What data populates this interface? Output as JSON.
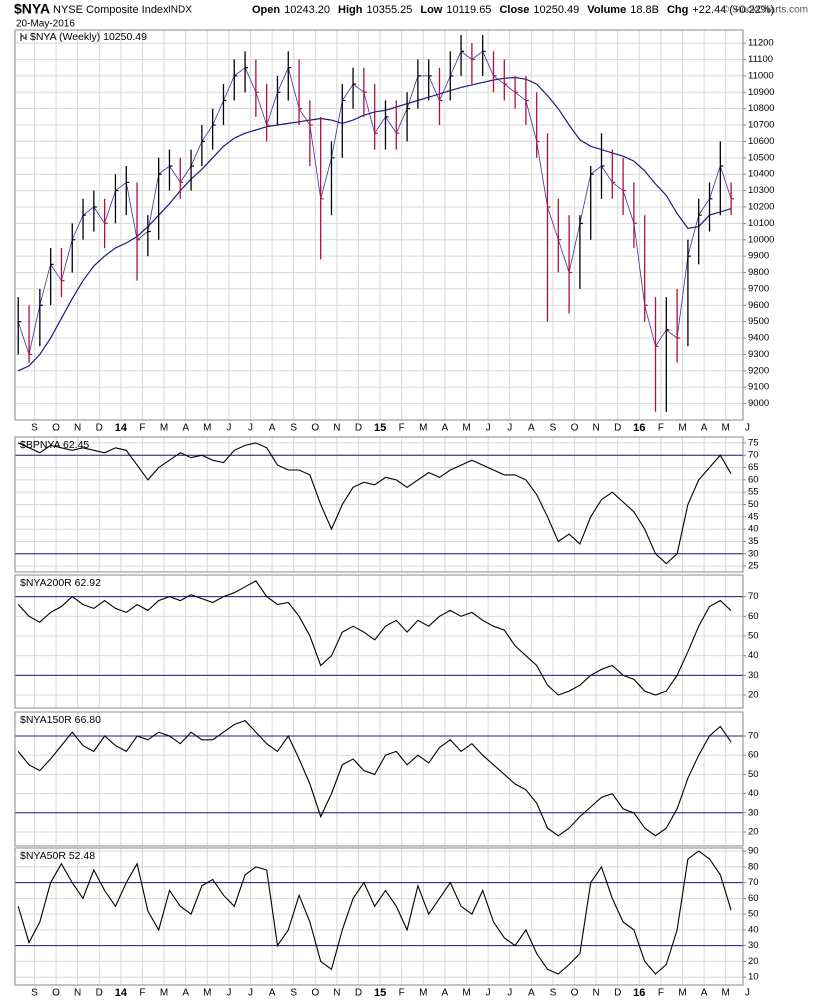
{
  "header": {
    "symbol": "$NYA",
    "name": "NYSE Composite Index",
    "exchange": "INDX",
    "date": "20-May-2016",
    "quote": [
      {
        "label": "Open",
        "value": "10243.20"
      },
      {
        "label": "High",
        "value": "10355.25"
      },
      {
        "label": "Low",
        "value": "10119.65"
      },
      {
        "label": "Close",
        "value": "10250.49"
      },
      {
        "label": "Volume",
        "value": "18.8B"
      },
      {
        "label": "Chg",
        "value": "+22.44 (+0.22%)"
      }
    ],
    "credit": "© StockCharts.com"
  },
  "chart_data": {
    "type": "stock",
    "x": [
      -0.75,
      -0.25,
      0.25,
      0.75,
      1.25,
      1.75,
      2.25,
      2.75,
      3.25,
      3.75,
      4.25,
      4.75,
      5.25,
      5.75,
      6.25,
      6.75,
      7.25,
      7.75,
      8.25,
      8.75,
      9.25,
      9.75,
      10.25,
      10.75,
      11.25,
      11.75,
      12.25,
      12.75,
      13.25,
      13.75,
      14.25,
      14.75,
      15.25,
      15.75,
      16.25,
      16.75,
      17.25,
      17.75,
      18.25,
      18.75,
      19.25,
      19.75,
      20.25,
      20.75,
      21.25,
      21.75,
      22.25,
      22.75,
      23.25,
      23.75,
      24.25,
      24.75,
      25.25,
      25.75,
      26.25,
      26.75,
      27.25,
      27.75,
      28.25,
      28.75,
      29.25,
      29.75,
      30.25,
      30.75,
      31.25,
      31.75,
      32.25
    ],
    "xlim": [
      -0.9,
      32.8
    ],
    "xticks": [
      {
        "value": 0,
        "label": "S"
      },
      {
        "value": 1,
        "label": "O"
      },
      {
        "value": 2,
        "label": "N"
      },
      {
        "value": 3,
        "label": "D"
      },
      {
        "value": 4,
        "label": "14"
      },
      {
        "value": 5,
        "label": "F"
      },
      {
        "value": 6,
        "label": "M"
      },
      {
        "value": 7,
        "label": "A"
      },
      {
        "value": 8,
        "label": "M"
      },
      {
        "value": 9,
        "label": "J"
      },
      {
        "value": 10,
        "label": "J"
      },
      {
        "value": 11,
        "label": "A"
      },
      {
        "value": 12,
        "label": "S"
      },
      {
        "value": 13,
        "label": "O"
      },
      {
        "value": 14,
        "label": "N"
      },
      {
        "value": 15,
        "label": "D"
      },
      {
        "value": 16,
        "label": "15"
      },
      {
        "value": 17,
        "label": "F"
      },
      {
        "value": 18,
        "label": "M"
      },
      {
        "value": 19,
        "label": "A"
      },
      {
        "value": 20,
        "label": "M"
      },
      {
        "value": 21,
        "label": "J"
      },
      {
        "value": 22,
        "label": "J"
      },
      {
        "value": 23,
        "label": "A"
      },
      {
        "value": 24,
        "label": "S"
      },
      {
        "value": 25,
        "label": "O"
      },
      {
        "value": 26,
        "label": "N"
      },
      {
        "value": 27,
        "label": "D"
      },
      {
        "value": 28,
        "label": "16"
      },
      {
        "value": 29,
        "label": "F"
      },
      {
        "value": 30,
        "label": "M"
      },
      {
        "value": 31,
        "label": "A"
      },
      {
        "value": 32,
        "label": "M"
      },
      {
        "value": 33,
        "label": "J"
      }
    ],
    "grid": true,
    "panels": [
      {
        "type": "ohlc",
        "legend": "$NYA (Weekly) 10250.49",
        "up_color": "#000000",
        "down_color": "#b0103a",
        "close_line_color": "#4b2a9a",
        "high": [
          9650,
          9600,
          9700,
          9950,
          9950,
          10100,
          10250,
          10300,
          10250,
          10400,
          10450,
          10350,
          10150,
          10500,
          10550,
          10500,
          10550,
          10700,
          10800,
          10950,
          11100,
          11150,
          11100,
          10950,
          11000,
          11150,
          11100,
          10850,
          10750,
          10600,
          10950,
          11050,
          11050,
          10950,
          10850,
          10850,
          10900,
          11100,
          11100,
          11050,
          11150,
          11250,
          11200,
          11250,
          11150,
          11100,
          11000,
          11000,
          10900,
          10650,
          10250,
          10150,
          10150,
          10450,
          10650,
          10550,
          10500,
          10350,
          10150,
          9650,
          9650,
          9700,
          10000,
          10250,
          10350,
          10600,
          10350
        ],
        "low": [
          9300,
          9250,
          9350,
          9600,
          9650,
          9800,
          10000,
          10050,
          9950,
          10100,
          10150,
          9750,
          9900,
          10000,
          10300,
          10250,
          10300,
          10450,
          10550,
          10700,
          10850,
          10900,
          10750,
          10600,
          10700,
          10850,
          10700,
          10450,
          9880,
          10150,
          10500,
          10800,
          10750,
          10550,
          10550,
          10550,
          10600,
          10800,
          10850,
          10700,
          10850,
          11000,
          10950,
          11000,
          10900,
          10850,
          10800,
          10700,
          10500,
          9500,
          9800,
          9550,
          9700,
          10000,
          10250,
          10250,
          10150,
          9950,
          9500,
          8950,
          8950,
          9250,
          9350,
          9850,
          10050,
          10150,
          10150
        ],
        "close": [
          9500,
          9300,
          9600,
          9850,
          9750,
          10000,
          10150,
          10200,
          10100,
          10300,
          10350,
          10000,
          10050,
          10400,
          10450,
          10350,
          10450,
          10600,
          10700,
          10850,
          11000,
          11050,
          10900,
          10700,
          10900,
          11050,
          10800,
          10700,
          10250,
          10500,
          10850,
          10950,
          10900,
          10650,
          10750,
          10650,
          10800,
          11000,
          11000,
          10850,
          11000,
          11150,
          11100,
          11150,
          11000,
          10950,
          10900,
          10850,
          10600,
          10200,
          10000,
          9800,
          10100,
          10400,
          10450,
          10350,
          10300,
          10100,
          9600,
          9350,
          9450,
          9400,
          9900,
          10150,
          10250,
          10450,
          10250
        ],
        "overlay": {
          "color": "#1c1c80",
          "values": [
            9200,
            9230,
            9300,
            9400,
            9520,
            9640,
            9750,
            9840,
            9900,
            9950,
            9980,
            10020,
            10080,
            10150,
            10220,
            10300,
            10370,
            10430,
            10500,
            10570,
            10620,
            10650,
            10670,
            10690,
            10700,
            10710,
            10720,
            10730,
            10740,
            10730,
            10710,
            10730,
            10760,
            10780,
            10790,
            10810,
            10830,
            10850,
            10870,
            10890,
            10910,
            10930,
            10945,
            10960,
            10975,
            10985,
            10990,
            10980,
            10950,
            10880,
            10800,
            10700,
            10610,
            10570,
            10550,
            10530,
            10510,
            10480,
            10420,
            10340,
            10270,
            10160,
            10070,
            10080,
            10150,
            10170,
            10190
          ]
        },
        "ylim": [
          8900,
          11280
        ],
        "yticks": [
          9000,
          9100,
          9200,
          9300,
          9400,
          9500,
          9600,
          9700,
          9800,
          9900,
          10000,
          10100,
          10200,
          10300,
          10400,
          10500,
          10600,
          10700,
          10800,
          10900,
          11000,
          11100,
          11200
        ]
      },
      {
        "type": "line",
        "label": "$BPNYA 62.45",
        "color": "#000000",
        "reference_lines": [
          70,
          30
        ],
        "reference_color": "#1c1c80",
        "values": [
          75,
          73,
          71,
          74,
          73,
          72,
          73,
          72,
          71,
          73,
          72,
          66,
          60,
          65,
          68,
          71,
          69,
          70,
          68,
          67,
          72,
          74,
          75,
          73,
          66,
          64,
          64,
          62,
          50,
          40,
          50,
          57,
          59,
          58,
          61,
          60,
          57,
          60,
          63,
          61,
          64,
          66,
          68,
          66,
          64,
          62,
          62,
          60,
          54,
          45,
          35,
          38,
          34,
          45,
          52,
          55,
          51,
          47,
          40,
          30,
          26,
          30,
          50,
          60,
          65,
          70,
          62.45
        ],
        "ylim": [
          22.6,
          77.4
        ],
        "yticks": [
          25,
          30,
          35,
          40,
          45,
          50,
          55,
          60,
          65,
          70,
          75
        ]
      },
      {
        "type": "line",
        "label": "$NYA200R 62.92",
        "color": "#000000",
        "reference_lines": [
          70,
          30
        ],
        "reference_color": "#1c1c80",
        "values": [
          66,
          60,
          57,
          62,
          65,
          70,
          66,
          64,
          68,
          64,
          62,
          66,
          63,
          68,
          70,
          68,
          71,
          69,
          67,
          70,
          72,
          75,
          78,
          70,
          66,
          67,
          60,
          50,
          35,
          40,
          52,
          55,
          52,
          48,
          55,
          58,
          52,
          58,
          55,
          60,
          63,
          60,
          62,
          58,
          55,
          53,
          45,
          40,
          35,
          25,
          20,
          22,
          25,
          30,
          33,
          35,
          30,
          28,
          22,
          20,
          22,
          30,
          42,
          55,
          65,
          68,
          62.92
        ],
        "ylim": [
          13.4,
          81
        ],
        "yticks": [
          20,
          30,
          40,
          50,
          60,
          70
        ]
      },
      {
        "type": "line",
        "label": "$NYA150R 66.80",
        "color": "#000000",
        "reference_lines": [
          70,
          30
        ],
        "reference_color": "#1c1c80",
        "values": [
          62,
          55,
          52,
          58,
          65,
          72,
          65,
          62,
          70,
          65,
          62,
          70,
          68,
          72,
          70,
          66,
          72,
          68,
          68,
          72,
          76,
          78,
          72,
          66,
          62,
          70,
          58,
          45,
          28,
          40,
          55,
          58,
          52,
          50,
          60,
          62,
          55,
          60,
          56,
          64,
          68,
          62,
          66,
          60,
          55,
          50,
          45,
          42,
          35,
          22,
          18,
          22,
          28,
          33,
          38,
          40,
          32,
          30,
          22,
          18,
          22,
          32,
          48,
          60,
          70,
          75,
          66.8
        ],
        "ylim": [
          12.7,
          82.5
        ],
        "yticks": [
          20,
          30,
          40,
          50,
          60,
          70
        ]
      },
      {
        "type": "line",
        "label": "$NYA50R 52.48",
        "color": "#000000",
        "reference_lines": [
          70,
          30
        ],
        "reference_color": "#1c1c80",
        "values": [
          55,
          32,
          45,
          70,
          82,
          70,
          60,
          78,
          65,
          55,
          70,
          82,
          52,
          40,
          65,
          55,
          50,
          68,
          72,
          62,
          55,
          75,
          80,
          78,
          30,
          40,
          62,
          45,
          20,
          15,
          40,
          60,
          70,
          55,
          65,
          55,
          40,
          68,
          50,
          60,
          70,
          55,
          50,
          65,
          45,
          35,
          30,
          40,
          25,
          15,
          12,
          18,
          25,
          70,
          80,
          60,
          45,
          40,
          20,
          12,
          18,
          40,
          85,
          90,
          85,
          75,
          52.48
        ],
        "ylim": [
          5,
          92
        ],
        "yticks": [
          10,
          20,
          30,
          40,
          50,
          60,
          70,
          80,
          90
        ]
      }
    ]
  }
}
